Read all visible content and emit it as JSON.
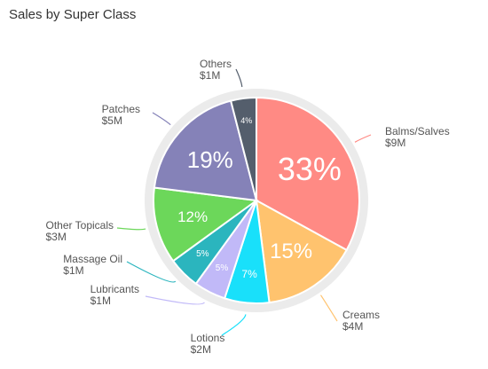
{
  "chart_data": {
    "type": "pie",
    "title": "Sales by Super Class",
    "slices": [
      {
        "name": "Balms/Salves",
        "value_label": "$9M",
        "pct": 33,
        "pct_label": "33%",
        "color": "#FF8A84"
      },
      {
        "name": "Creams",
        "value_label": "$4M",
        "pct": 15,
        "pct_label": "15%",
        "color": "#FFC36E"
      },
      {
        "name": "Lotions",
        "value_label": "$2M",
        "pct": 7,
        "pct_label": "7%",
        "color": "#19E0FA"
      },
      {
        "name": "Lubricants",
        "value_label": "$1M",
        "pct": 5,
        "pct_label": "5%",
        "color": "#C1B9F8"
      },
      {
        "name": "Massage Oil",
        "value_label": "$1M",
        "pct": 5,
        "pct_label": "5%",
        "color": "#2BB5BE"
      },
      {
        "name": "Other Topicals",
        "value_label": "$3M",
        "pct": 12,
        "pct_label": "12%",
        "color": "#6CD75A"
      },
      {
        "name": "Patches",
        "value_label": "$5M",
        "pct": 19,
        "pct_label": "19%",
        "color": "#8582B8"
      },
      {
        "name": "Others",
        "value_label": "$1M",
        "pct": 4,
        "pct_label": "4%",
        "color": "#545E6C"
      }
    ]
  }
}
